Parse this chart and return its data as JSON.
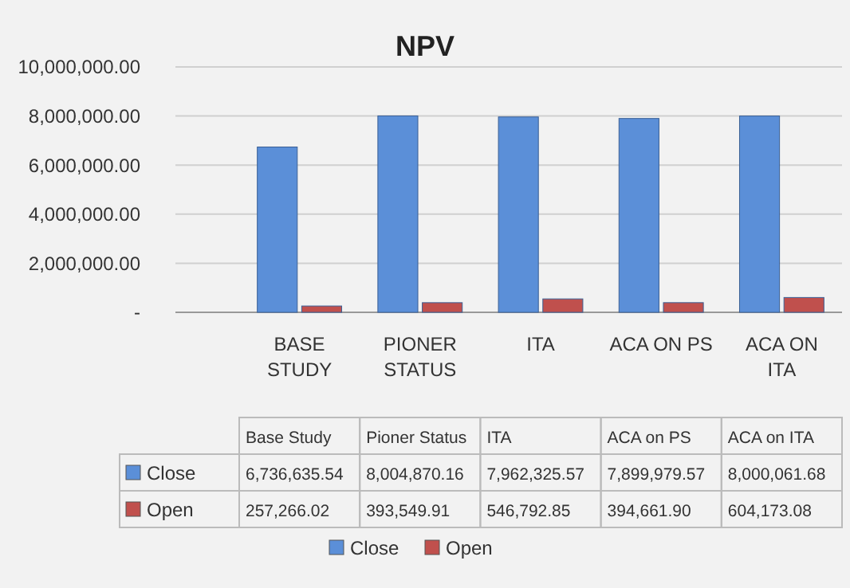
{
  "chart_data": {
    "type": "bar",
    "title": "NPV",
    "categories": [
      "BASE STUDY",
      "PIONER STATUS",
      "ITA",
      "ACA ON PS",
      "ACA ON ITA"
    ],
    "annotations": [
      "Base Study",
      "Pioner Status",
      "ITA",
      "ACA on PS",
      "ACA on ITA"
    ],
    "series": [
      {
        "name": "Close",
        "color": "#5b8fd8",
        "values": [
          6736635.54,
          8004870.16,
          7962325.57,
          7899979.57,
          8000061.68
        ],
        "value_labels": [
          "6,736,635.54",
          "8,004,870.16",
          "7,962,325.57",
          "7,899,979.57",
          "8,000,061.68"
        ]
      },
      {
        "name": "Open",
        "color": "#c0504d",
        "values": [
          257266.02,
          393549.91,
          546792.85,
          394661.9,
          604173.08
        ],
        "value_labels": [
          "257,266.02",
          "393,549.91",
          "546,792.85",
          "394,661.90",
          "604,173.08"
        ]
      }
    ],
    "ylim": [
      0,
      10000000
    ],
    "yticks": [
      {
        "value": 0,
        "label": "-"
      },
      {
        "value": 2000000,
        "label": "2,000,000.00"
      },
      {
        "value": 4000000,
        "label": "4,000,000.00"
      },
      {
        "value": 6000000,
        "label": "6,000,000.00"
      },
      {
        "value": 8000000,
        "label": "8,000,000.00"
      },
      {
        "value": 10000000,
        "label": "10,000,000.00"
      }
    ],
    "grid": "y",
    "legend": "bottom"
  }
}
